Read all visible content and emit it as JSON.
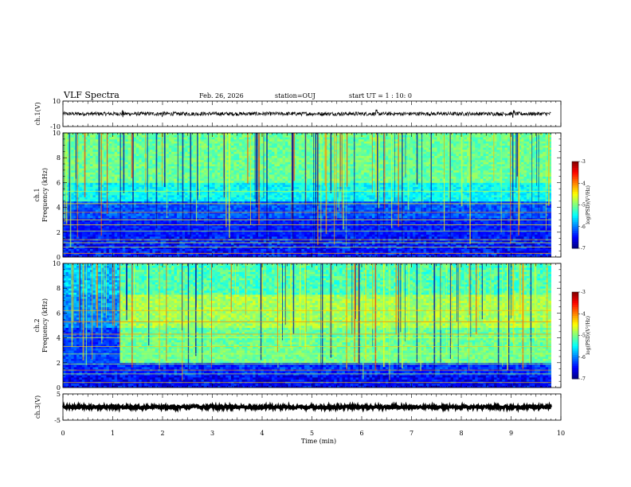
{
  "header": {
    "title": "VLF Spectra",
    "date": "Feb. 26, 2026",
    "station": "station=OUJ",
    "start_ut": "start UT =  1 : 10: 0"
  },
  "colormap": [
    "#000080",
    "#0000ff",
    "#0080ff",
    "#00ffff",
    "#80ff80",
    "#ffff00",
    "#ff8000",
    "#ff0000",
    "#800000"
  ],
  "chart_data": [
    {
      "id": "ch1-waveform",
      "type": "line",
      "ylabel": "ch.1(V)",
      "ylim": [
        -10,
        10
      ],
      "yticks": [
        {
          "v": 10,
          "label": "10"
        },
        {
          "v": -10,
          "label": "-10"
        }
      ],
      "xlim": [
        0,
        10
      ],
      "baseline": 0,
      "amplitude": 1.5,
      "data_end_min": 9.8,
      "spikes_min": [
        1.2,
        2.0,
        6.3,
        9.05
      ]
    },
    {
      "id": "ch1-spectrogram",
      "type": "heatmap",
      "ylabel_top": "ch.1",
      "ylabel": "Frequency (kHz)",
      "ylim": [
        0,
        10
      ],
      "yticks": [
        "0",
        "2",
        "4",
        "6",
        "8",
        "10"
      ],
      "xlim": [
        0,
        10
      ],
      "data_end_min": 9.8,
      "colorbar": {
        "label": "log(PSD)(V²/Hz)",
        "range": [
          -7,
          -3
        ],
        "ticks": [
          "-3",
          "-4",
          "-5",
          "-6",
          "-7"
        ]
      }
    },
    {
      "id": "ch2-spectrogram",
      "type": "heatmap",
      "ylabel_top": "ch.2",
      "ylabel": "Frequency (kHz)",
      "ylim": [
        0,
        10
      ],
      "yticks": [
        "0",
        "2",
        "4",
        "6",
        "8",
        "10"
      ],
      "xlim": [
        0,
        10
      ],
      "data_end_min": 9.8,
      "colorbar": {
        "label": "log(PSD)(V²/Hz)",
        "range": [
          -7,
          -3
        ],
        "ticks": [
          "-3",
          "-4",
          "-5",
          "-6",
          "-7"
        ]
      }
    },
    {
      "id": "ch3-waveform",
      "type": "line",
      "ylabel": "ch.3(V)",
      "ylim": [
        -5,
        5
      ],
      "yticks": [
        {
          "v": 5,
          "label": "5"
        },
        {
          "v": -5,
          "label": "-5"
        }
      ],
      "xlim": [
        0,
        10
      ],
      "baseline": 0,
      "amplitude": 0.5,
      "data_end_min": 9.8,
      "spikes_min": []
    }
  ],
  "xaxis": {
    "label": "Time (min)",
    "range": [
      0,
      10
    ],
    "ticks": [
      "0",
      "1",
      "2",
      "3",
      "4",
      "5",
      "6",
      "7",
      "8",
      "9",
      "10"
    ]
  }
}
